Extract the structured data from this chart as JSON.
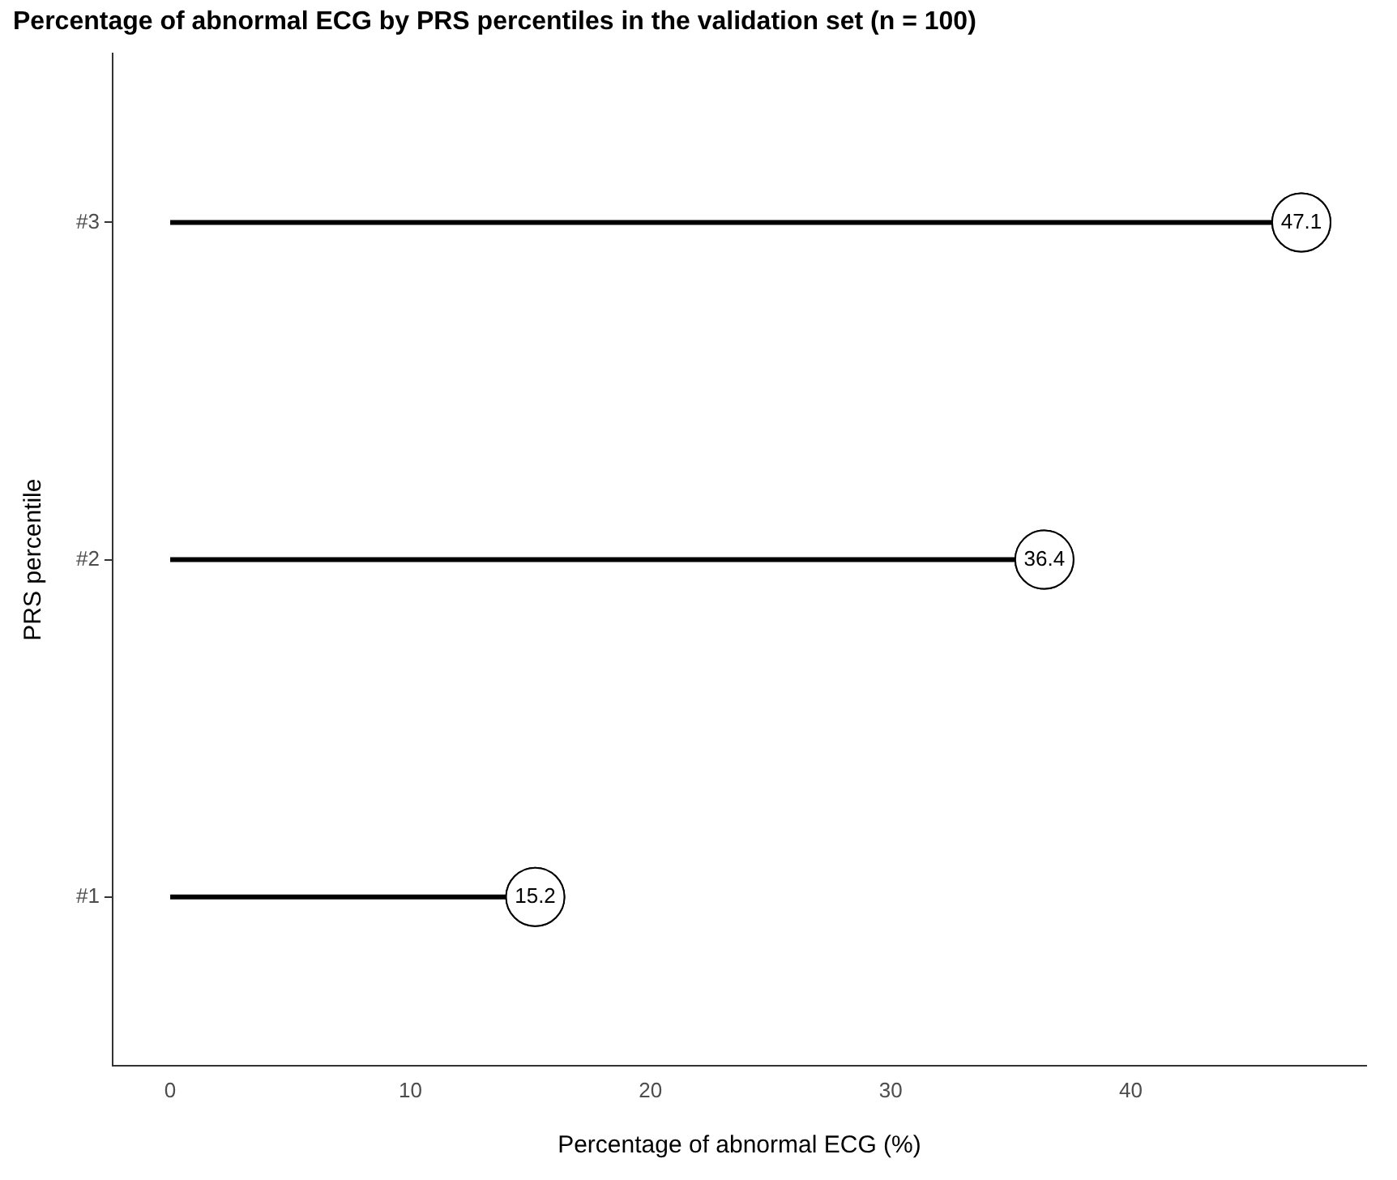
{
  "chart_data": {
    "type": "lollipop",
    "orientation": "horizontal",
    "title": "Percentage of abnormal ECG by PRS percentiles in the validation set (n = 100)",
    "xlabel": "Percentage of abnormal ECG (%)",
    "ylabel": "PRS percentile",
    "categories": [
      "#3",
      "#2",
      "#1"
    ],
    "values": [
      47.1,
      36.4,
      15.2
    ],
    "color": "#000000",
    "xlim": [
      -2.4,
      49.8
    ],
    "xticks": [
      0,
      10,
      20,
      30,
      40
    ],
    "data_labels": true,
    "marker": "circle",
    "legend": false
  }
}
